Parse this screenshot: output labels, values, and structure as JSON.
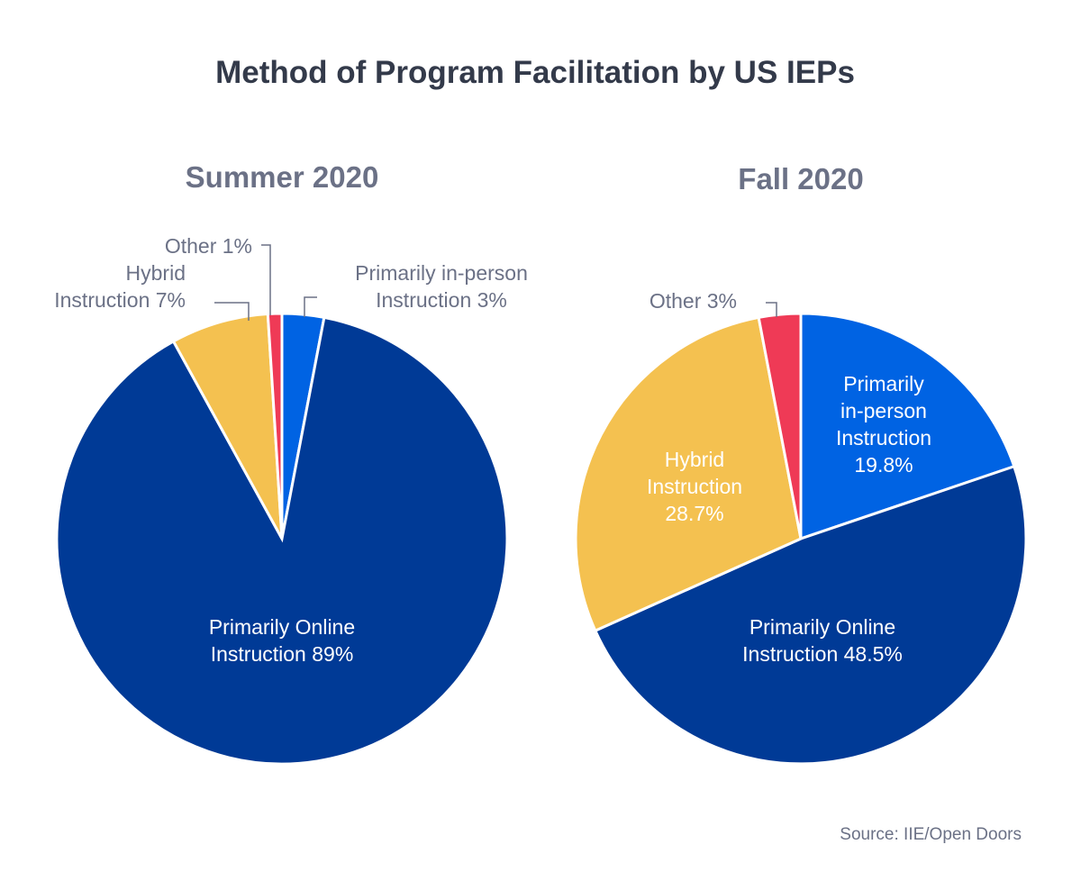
{
  "colors": {
    "primarily_online": "#003a96",
    "primarily_in_person": "#0063e3",
    "hybrid": "#f4c150",
    "other": "#ef3a56"
  },
  "chart_data": {
    "type": "pie",
    "title": "Method of Program Facilitation by US IEPs",
    "source": "Source: IIE/Open Doors",
    "charts": [
      {
        "title": "Summer 2020",
        "slices": [
          {
            "key": "primarily_in_person",
            "value": 3,
            "label": [
              "Primarily in-person",
              "Instruction 3%"
            ]
          },
          {
            "key": "primarily_online",
            "value": 89,
            "label": [
              "Primarily Online",
              "Instruction 89%"
            ]
          },
          {
            "key": "hybrid",
            "value": 7,
            "label": [
              "Hybrid",
              "Instruction 7%"
            ]
          },
          {
            "key": "other",
            "value": 1,
            "label": [
              "Other 1%"
            ]
          }
        ]
      },
      {
        "title": "Fall 2020",
        "slices": [
          {
            "key": "primarily_in_person",
            "value": 19.8,
            "label": [
              "Primarily",
              "in-person",
              "Instruction",
              "19.8%"
            ]
          },
          {
            "key": "primarily_online",
            "value": 48.5,
            "label": [
              "Primarily Online",
              "Instruction 48.5%"
            ]
          },
          {
            "key": "hybrid",
            "value": 28.7,
            "label": [
              "Hybrid",
              "Instruction",
              "28.7%"
            ]
          },
          {
            "key": "other",
            "value": 3,
            "label": [
              "Other 3%"
            ]
          }
        ]
      }
    ]
  }
}
